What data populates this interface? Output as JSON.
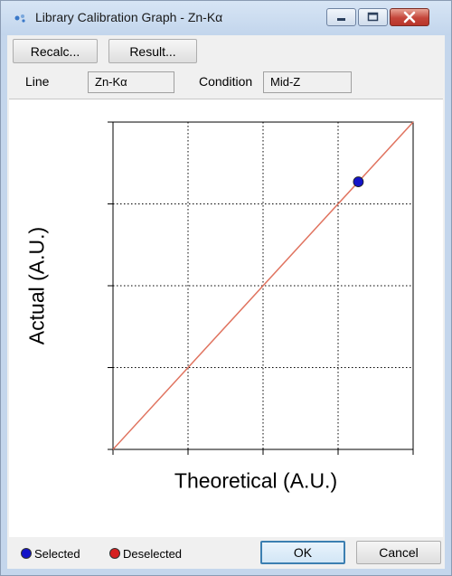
{
  "window": {
    "title": "Library Calibration Graph - Zn-Kα",
    "icon": "app-icon"
  },
  "toolbar": {
    "recalc_label": "Recalc...",
    "result_label": "Result..."
  },
  "fields": {
    "line_label": "Line",
    "line_value": "Zn-Kα",
    "condition_label": "Condition",
    "condition_value": "Mid-Z"
  },
  "chart_data": {
    "type": "scatter",
    "title": "",
    "xlabel": "Theoretical (A.U.)",
    "ylabel": "Actual (A.U.)",
    "xlim": [
      0,
      4
    ],
    "ylim": [
      0,
      4
    ],
    "grid": true,
    "grid_style": "dotted",
    "tick_labels": false,
    "legend_placement": "bottom-left",
    "reference_line": {
      "x": [
        0,
        4
      ],
      "y": [
        0,
        4
      ],
      "color": "#e0735f"
    },
    "series": [
      {
        "name": "Selected",
        "color": "#1414c8",
        "points": [
          {
            "x": 3.27,
            "y": 3.27
          }
        ]
      },
      {
        "name": "Deselected",
        "color": "#d62020",
        "points": []
      }
    ]
  },
  "footer": {
    "ok_label": "OK",
    "cancel_label": "Cancel"
  }
}
